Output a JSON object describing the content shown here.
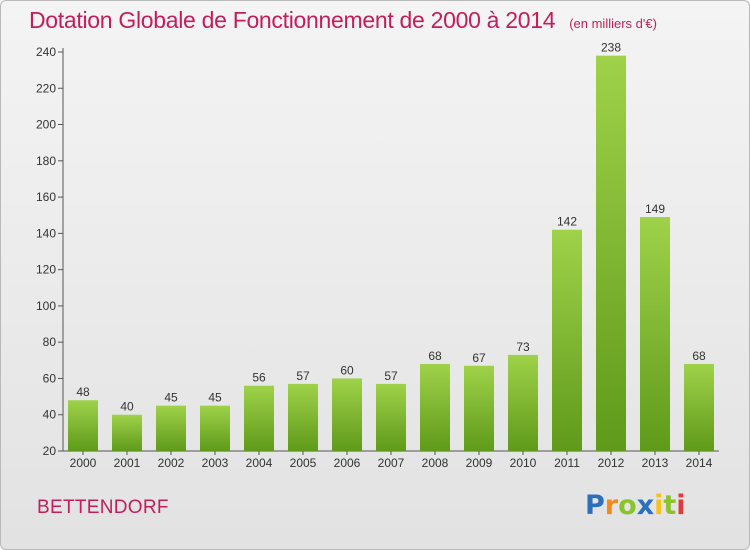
{
  "chart_data": {
    "type": "bar",
    "title": "Dotation Globale de Fonctionnement de 2000 à 2014",
    "subtitle": "(en milliers d'€)",
    "categories": [
      "2000",
      "2001",
      "2002",
      "2003",
      "2004",
      "2005",
      "2006",
      "2007",
      "2008",
      "2009",
      "2010",
      "2011",
      "2012",
      "2013",
      "2014"
    ],
    "values": [
      48,
      40,
      45,
      45,
      56,
      57,
      60,
      57,
      68,
      67,
      73,
      142,
      238,
      149,
      68
    ],
    "ylim": [
      20,
      240
    ],
    "yticks": [
      20,
      40,
      60,
      80,
      100,
      120,
      140,
      160,
      180,
      200,
      220,
      240
    ],
    "grid": false,
    "bar_color": "#7cbb2a",
    "xlabel": "",
    "ylabel": ""
  },
  "location": "BETTENDORF",
  "brand": {
    "letters": [
      "P",
      "r",
      "o",
      "x",
      "i",
      "t",
      "i"
    ]
  },
  "colors": {
    "title": "#c41e5a",
    "axis": "#555555",
    "label": "#333333"
  }
}
